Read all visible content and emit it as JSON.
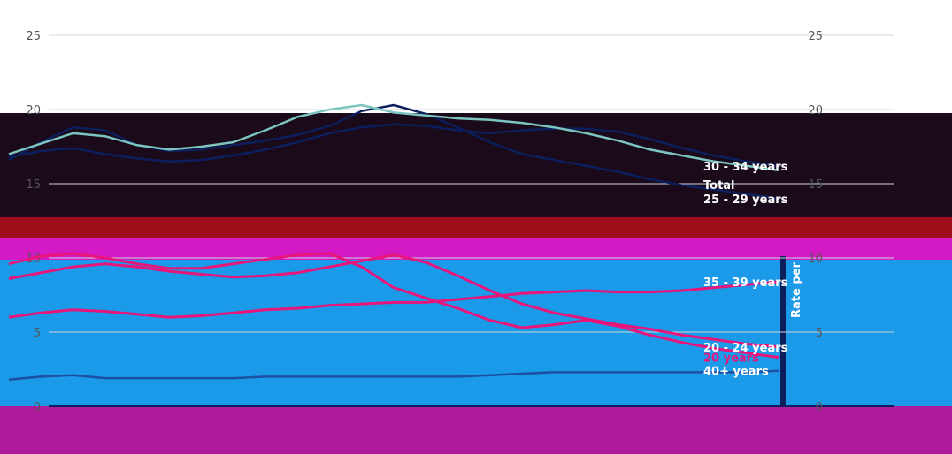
{
  "chart_data": {
    "type": "line",
    "title": "",
    "xlabel": "",
    "ylabel": "Rate per",
    "y_ticks": [
      "0",
      "5",
      "10",
      "15",
      "20",
      "25"
    ],
    "ylim": [
      0,
      25
    ],
    "x_count": 25,
    "series": [
      {
        "name": "25 - 29 years",
        "color": "#0b1f5c",
        "label_color": "#ffffff",
        "values": [
          16.6,
          17.8,
          18.8,
          18.6,
          17.6,
          17.2,
          17.3,
          17.6,
          17.9,
          18.3,
          18.9,
          19.9,
          20.3,
          19.7,
          18.8,
          17.8,
          17.0,
          16.6,
          16.2,
          15.8,
          15.3,
          14.9,
          14.6,
          14.3,
          14.0
        ]
      },
      {
        "name": "30 - 34 years",
        "color": "#0b1f5c",
        "label_color": "#ffffff",
        "values": [
          16.8,
          17.2,
          17.4,
          17.0,
          16.7,
          16.5,
          16.6,
          16.9,
          17.3,
          17.8,
          18.4,
          18.8,
          19.0,
          18.9,
          18.6,
          18.4,
          18.6,
          18.7,
          18.7,
          18.5,
          18.0,
          17.4,
          16.9,
          16.5,
          16.2
        ]
      },
      {
        "name": "Total",
        "color": "#7cc5c0",
        "label_color": "#ffffff",
        "values": [
          17.0,
          17.7,
          18.4,
          18.2,
          17.6,
          17.3,
          17.5,
          17.8,
          18.6,
          19.5,
          20.0,
          20.3,
          19.8,
          19.6,
          19.4,
          19.3,
          19.1,
          18.8,
          18.4,
          17.9,
          17.3,
          16.9,
          16.5,
          16.2,
          15.9
        ]
      },
      {
        "name": "20 - 24 years",
        "color": "#e8157a",
        "label_color": "#ffffff",
        "values": [
          8.6,
          9.0,
          9.4,
          9.6,
          9.4,
          9.1,
          8.9,
          8.7,
          8.8,
          9.0,
          9.4,
          9.8,
          10.2,
          9.7,
          8.8,
          7.8,
          6.9,
          6.3,
          5.9,
          5.5,
          5.2,
          4.8,
          4.5,
          4.2,
          4.0
        ]
      },
      {
        "name": "35 - 39 years",
        "color": "#e8157a",
        "label_color": "#ffffff",
        "values": [
          6.0,
          6.3,
          6.5,
          6.4,
          6.2,
          6.0,
          6.1,
          6.3,
          6.5,
          6.6,
          6.8,
          6.9,
          7.0,
          7.0,
          7.2,
          7.4,
          7.6,
          7.7,
          7.8,
          7.7,
          7.7,
          7.8,
          8.0,
          8.2,
          8.4
        ]
      },
      {
        "name": "20 years",
        "color": "#e8157a",
        "label_color": "#e8157a",
        "values": [
          9.6,
          10.1,
          10.3,
          10.0,
          9.6,
          9.3,
          9.3,
          9.6,
          9.9,
          10.2,
          10.3,
          9.4,
          8.0,
          7.3,
          6.6,
          5.8,
          5.3,
          5.5,
          5.8,
          5.4,
          4.8,
          4.3,
          3.9,
          3.6,
          3.3
        ]
      },
      {
        "name": "40+ years",
        "color": "#1d4fa3",
        "label_color": "#ffffff",
        "values": [
          1.8,
          2.0,
          2.1,
          1.9,
          1.9,
          1.9,
          1.9,
          1.9,
          2.0,
          2.0,
          2.0,
          2.0,
          2.0,
          2.0,
          2.0,
          2.1,
          2.2,
          2.3,
          2.3,
          2.3,
          2.3,
          2.3,
          2.3,
          2.3,
          2.4
        ]
      }
    ],
    "colors": {
      "bg_top": "#ffffff",
      "band_dark": "#1a0a1a",
      "band_red": "#9e0d1a",
      "band_magenta": "#d31ac4",
      "band_blue": "#1a9ae8",
      "band_bottom": "#b01a9c",
      "gridline": "#cfd6dc"
    }
  }
}
